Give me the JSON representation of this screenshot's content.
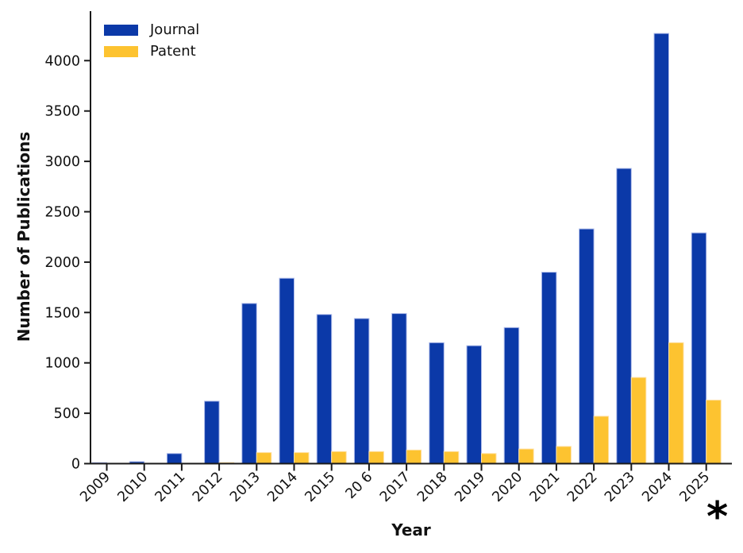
{
  "figure": {
    "background_color": "#ffffff",
    "axis_color": "#1a1a1a",
    "text_color": "#111111"
  },
  "chart_data": {
    "type": "bar",
    "title": "",
    "xlabel": "Year",
    "ylabel": "Number of Publications",
    "categories": [
      "2009",
      "2010",
      "2011",
      "2012",
      "2013",
      "2014",
      "2015",
      "2016",
      "2017",
      "2018",
      "2019",
      "2020",
      "2021",
      "2022",
      "2023",
      "2024",
      "2025"
    ],
    "x_tick_labels": [
      "2009",
      "2010",
      "2011",
      "2012",
      "2013",
      "2014",
      "2015",
      "20 6",
      "2017",
      "2018",
      "2019",
      "2020",
      "2021",
      "2022",
      "2023",
      "2024",
      "2025"
    ],
    "series": [
      {
        "name": "Journal",
        "color": "#0b39a8",
        "edge_color": "#aebbea",
        "values": [
          10,
          20,
          100,
          620,
          1590,
          1840,
          1480,
          1440,
          1490,
          1200,
          1170,
          1350,
          1900,
          2330,
          2930,
          4270,
          2290
        ]
      },
      {
        "name": "Patent",
        "color": "#fdc330",
        "edge_color": "#ffe0a3",
        "values": [
          0,
          0,
          0,
          10,
          110,
          110,
          120,
          120,
          135,
          120,
          100,
          145,
          170,
          470,
          855,
          1200,
          630
        ]
      }
    ],
    "yticks": [
      0,
      500,
      1000,
      1500,
      2000,
      2500,
      3000,
      3500,
      4000
    ],
    "ylim": [
      0,
      4490
    ],
    "grid": false,
    "legend_position": "upper-left",
    "legend_frame": false,
    "x_tick_rotation_deg": 45,
    "annotation": {
      "text": "*",
      "attached_to": "2025"
    }
  }
}
